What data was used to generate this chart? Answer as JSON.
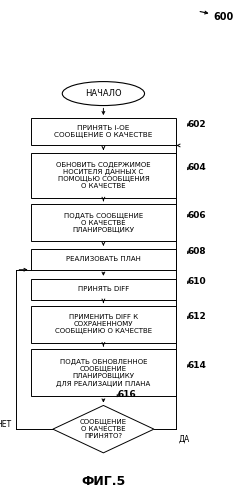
{
  "title": "ФИГ.5",
  "label_600": "600",
  "start_text": "НАЧАЛО",
  "box602_text": "ПРИНЯТЬ i-ОЕ\nСООБЩЕНИЕ О КАЧЕСТВЕ",
  "box602_label": "602",
  "box604_text": "ОБНОВИТЬ СОДЕРЖИМОЕ\nНОСИТЕЛЯ ДАННЫХ С\nПОМОЩЬЮ СООБЩЕНИЯ\nО КАЧЕСТВЕ",
  "box604_label": "604",
  "box606_text": "ПОДАТЬ СООБЩЕНИЕ\nО КАЧЕСТВЕ\nПЛАНИРОВЩИКУ",
  "box606_label": "606",
  "box608_text": "РЕАЛИЗОВАТЬ ПЛАН",
  "box608_label": "608",
  "box610_text": "ПРИНЯТЬ DIFF",
  "box610_label": "610",
  "box612_text": "ПРИМЕНИТЬ DIFF К\nСОХРАНЕННОМУ\nСООБЩЕНИЮ О КАЧЕСТВЕ",
  "box612_label": "612",
  "box614_text": "ПОДАТЬ ОБНОВЛЕННОЕ\nСООБЩЕНИЕ\nПЛАНИРОВЩИКУ\nДЛЯ РЕАЛИЗАЦИИ ПЛАНА",
  "box614_label": "614",
  "diamond616_text": "СООБЩЕНИЕ\nО КАЧЕСТВЕ\nПРИНЯТО?",
  "diamond616_label": "616",
  "no_label": "НЕТ",
  "yes_label": "ДА",
  "bg_color": "#ffffff",
  "text_color": "#000000"
}
